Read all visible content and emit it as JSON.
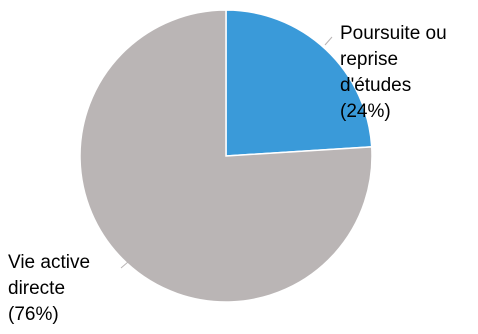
{
  "chart_data": {
    "type": "pie",
    "slices": [
      {
        "label_lines": [
          "Poursuite ou",
          "reprise",
          "d'études",
          "(24%)"
        ],
        "value": 24,
        "color": "#3a9ad9"
      },
      {
        "label_lines": [
          "Vie active",
          "directe",
          "(76%)"
        ],
        "value": 76,
        "color": "#bab5b5"
      }
    ],
    "start_angle": "12 o'clock",
    "direction": "clockwise",
    "legend": "none",
    "slice_border_color": "#ffffff"
  }
}
